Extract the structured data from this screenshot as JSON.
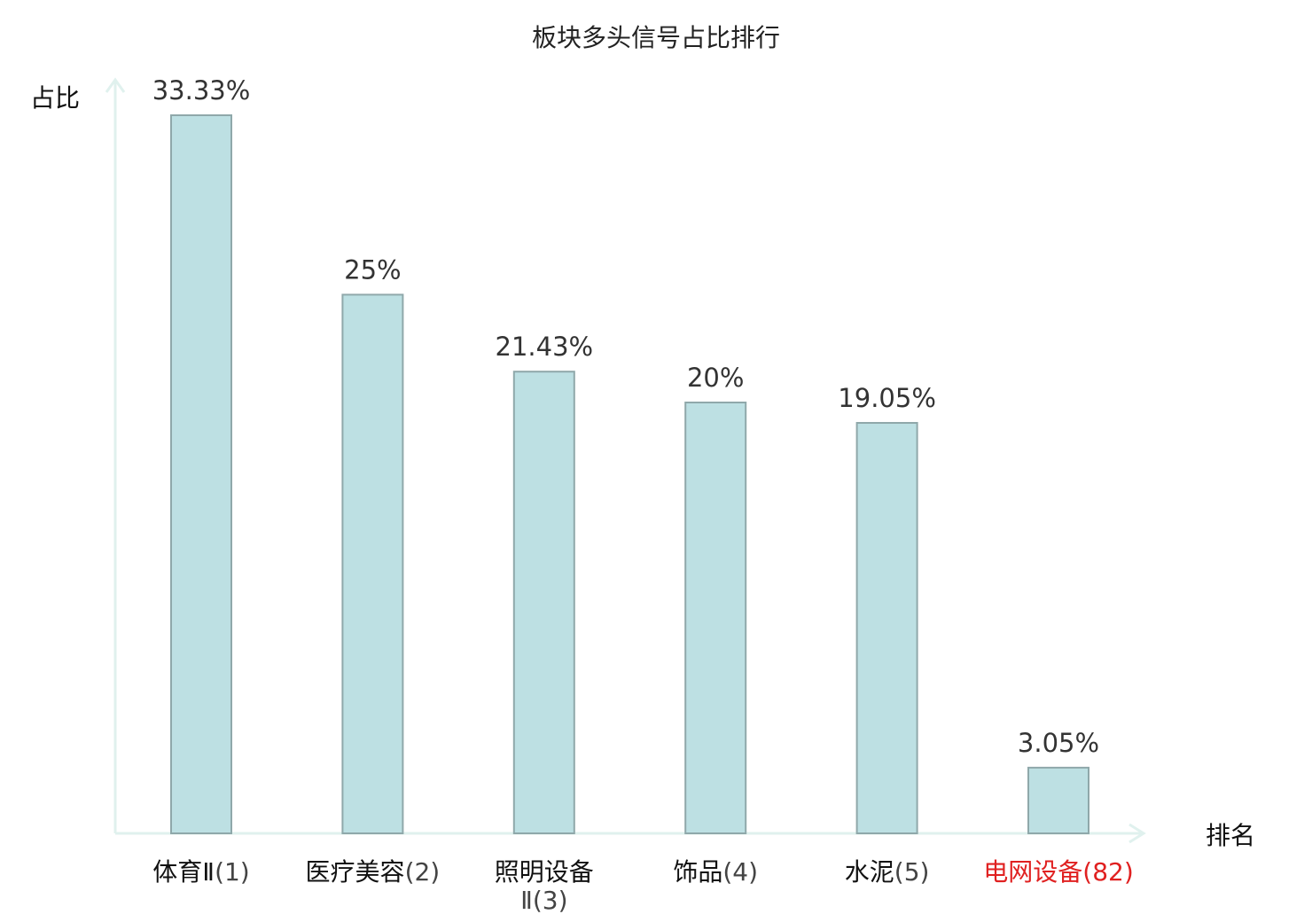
{
  "chart_data": {
    "type": "bar",
    "title": "板块多头信号占比排行",
    "ylabel": "占比",
    "xlabel": "排名",
    "ylim": [
      0,
      35
    ],
    "grid": false,
    "categories": [
      {
        "name": "体育Ⅱ",
        "rank": "(1)"
      },
      {
        "name": "医疗美容",
        "rank": "(2)"
      },
      {
        "name": "照明设备Ⅱ",
        "rank": "(3)"
      },
      {
        "name": "饰品",
        "rank": "(4)"
      },
      {
        "name": "水泥",
        "rank": "(5)"
      },
      {
        "name": "电网设备",
        "rank": "(82)"
      }
    ],
    "values": [
      33.33,
      25,
      21.43,
      20,
      19.05,
      3.05
    ],
    "value_labels": [
      "33.33%",
      "25%",
      "21.43%",
      "20%",
      "19.05%",
      "3.05%"
    ],
    "highlight_index": 5,
    "colors": {
      "bar_fill": "#bde0e3",
      "bar_stroke": "#8fa8aa",
      "axis": "#e0f1ee",
      "highlight": "#e02020",
      "text": "#111111",
      "rank_text": "#444444"
    }
  }
}
